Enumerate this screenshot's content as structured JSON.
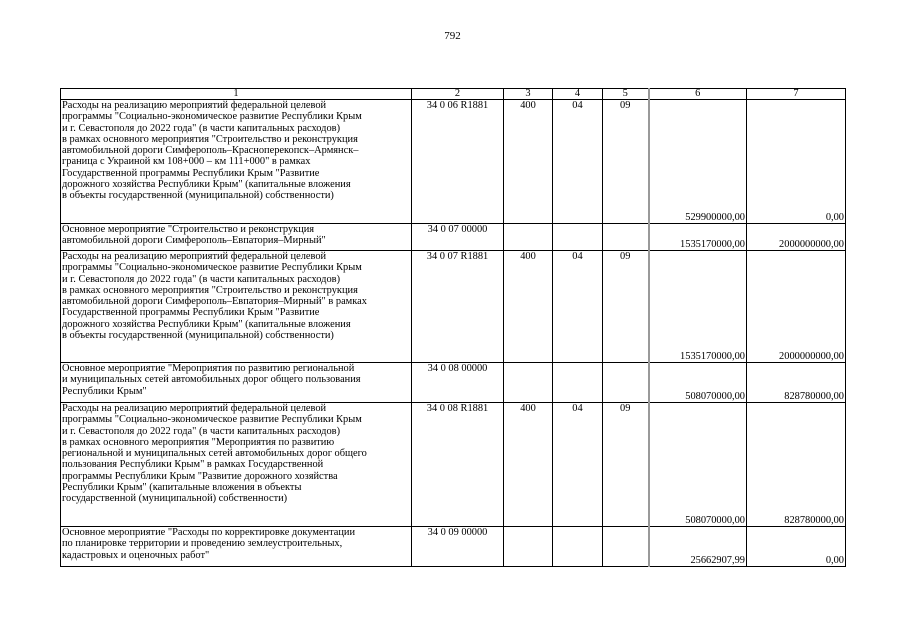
{
  "page_number": "792",
  "header": [
    "1",
    "2",
    "3",
    "4",
    "5",
    "6",
    "7"
  ],
  "rows": [
    {
      "lines": [
        "Расходы на реализацию мероприятий федеральной целевой",
        "программы \"Социально-экономическое развитие Республики Крым",
        "и г. Севастополя до 2022 года\" (в части капитальных расходов)",
        "в рамках основного мероприятия \"Строительство и реконструкция",
        "автомобильной дороги Симферополь–Красноперекопск–Армянск–",
        "граница с Украиной км 108+000 – км 111+000\" в рамках",
        "Государственной программы Республики Крым \"Развитие",
        "дорожного хозяйства Республики Крым\"  (капитальные вложения",
        "в объекты государственной (муниципальной) собственности)"
      ],
      "code": "34 0 06 R1881",
      "vr": "400",
      "rz": "04",
      "pr": "09",
      "sum6": "529900000,00",
      "sum7": "0,00"
    },
    {
      "lines": [
        "Основное мероприятие \"Строительство и реконструкция",
        "автомобильной дороги Симферополь–Евпатория–Мирный\""
      ],
      "code": "34 0 07 00000",
      "vr": "",
      "rz": "",
      "pr": "",
      "sum6": "1535170000,00",
      "sum7": "2000000000,00"
    },
    {
      "lines": [
        "Расходы на реализацию мероприятий федеральной целевой",
        "программы \"Социально-экономическое развитие Республики Крым",
        "и г. Севастополя до 2022 года\" (в части капитальных расходов)",
        "в рамках основного мероприятия \"Строительство и реконструкция",
        "автомобильной дороги Симферополь–Евпатория–Мирный\" в рамках",
        "Государственной программы Республики Крым \"Развитие",
        "дорожного хозяйства Республики Крым\"  (капитальные вложения",
        "в объекты государственной (муниципальной) собственности)"
      ],
      "code": "34 0 07 R1881",
      "vr": "400",
      "rz": "04",
      "pr": "09",
      "sum6": "1535170000,00",
      "sum7": "2000000000,00"
    },
    {
      "lines": [
        "Основное мероприятие \"Мероприятия по развитию региональной",
        "и муниципальных сетей автомобильных дорог общего пользования",
        "Республики Крым\""
      ],
      "code": "34 0 08 00000",
      "vr": "",
      "rz": "",
      "pr": "",
      "sum6": "508070000,00",
      "sum7": "828780000,00"
    },
    {
      "lines": [
        "Расходы на реализацию мероприятий федеральной целевой",
        "программы \"Социально-экономическое развитие Республики Крым",
        "и г. Севастополя до 2022 года\" (в части капитальных расходов)",
        "в рамках основного мероприятия \"Мероприятия по развитию",
        "региональной и муниципальных сетей автомобильных дорог общего",
        "пользования Республики Крым\" в рамках Государственной",
        "программы Республики Крым \"Развитие дорожного хозяйства",
        "Республики Крым\"  (капитальные вложения в объекты",
        "государственной (муниципальной) собственности)"
      ],
      "code": "34 0 08 R1881",
      "vr": "400",
      "rz": "04",
      "pr": "09",
      "sum6": "508070000,00",
      "sum7": "828780000,00"
    },
    {
      "lines": [
        "Основное мероприятие \"Расходы по корректировке документации",
        "по планировке территории и проведению землеустроительных,",
        "кадастровых и оценочных работ\""
      ],
      "code": "34 0 09 00000",
      "vr": "",
      "rz": "",
      "pr": "",
      "sum6": "25662907,99",
      "sum7": "0,00"
    }
  ]
}
